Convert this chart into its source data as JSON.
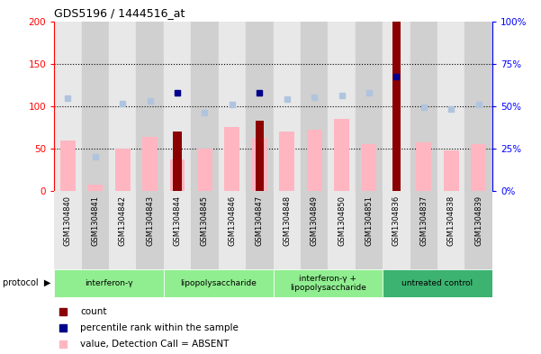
{
  "title": "GDS5196 / 1444516_at",
  "samples": [
    "GSM1304840",
    "GSM1304841",
    "GSM1304842",
    "GSM1304843",
    "GSM1304844",
    "GSM1304845",
    "GSM1304846",
    "GSM1304847",
    "GSM1304848",
    "GSM1304849",
    "GSM1304850",
    "GSM1304851",
    "GSM1304836",
    "GSM1304837",
    "GSM1304838",
    "GSM1304839"
  ],
  "groups": [
    {
      "name": "interferon-γ",
      "start": 0,
      "end": 4,
      "color": "#90EE90"
    },
    {
      "name": "lipopolysaccharide",
      "start": 4,
      "end": 8,
      "color": "#90EE90"
    },
    {
      "name": "interferon-γ +\nlipopolysaccharide",
      "start": 8,
      "end": 12,
      "color": "#90EE90"
    },
    {
      "name": "untreated control",
      "start": 12,
      "end": 16,
      "color": "#3CB371"
    }
  ],
  "count_values": [
    0,
    0,
    0,
    0,
    70,
    0,
    0,
    83,
    0,
    0,
    0,
    0,
    200,
    0,
    0,
    0
  ],
  "rank_values": [
    109,
    40,
    103,
    106,
    116,
    93,
    102,
    116,
    108,
    110,
    113,
    116,
    135,
    99,
    97,
    102
  ],
  "value_absent": [
    60,
    8,
    50,
    64,
    37,
    50,
    76,
    63,
    70,
    72,
    85,
    55,
    57,
    48,
    55
  ],
  "value_absent_indices": [
    0,
    1,
    2,
    3,
    4,
    5,
    6,
    7,
    8,
    9,
    10,
    11,
    13,
    14,
    15
  ],
  "rank_absent": [
    109,
    40,
    103,
    106,
    116,
    93,
    102,
    116,
    108,
    110,
    113,
    116,
    99,
    97,
    102
  ],
  "rank_absent_indices": [
    0,
    1,
    2,
    3,
    4,
    5,
    6,
    7,
    8,
    9,
    10,
    11,
    13,
    14,
    15
  ],
  "dark_blue_indices": [
    4,
    7,
    12
  ],
  "ylim_left": [
    0,
    200
  ],
  "ylim_right": [
    0,
    100
  ],
  "yticks_left": [
    0,
    50,
    100,
    150,
    200
  ],
  "yticks_right": [
    0,
    25,
    50,
    75,
    100
  ],
  "ytick_labels_right": [
    "0%",
    "25%",
    "50%",
    "75%",
    "100%"
  ],
  "grid_lines": [
    50,
    100,
    150
  ],
  "bar_color_dark_red": "#8B0000",
  "bar_color_pink": "#FFB6C1",
  "dot_color_dark_blue": "#00008B",
  "dot_color_light_blue": "#B0C4DE",
  "bg_gray_light": "#E8E8E8",
  "bg_gray_dark": "#D0D0D0",
  "legend_items": [
    {
      "label": "count",
      "color": "#8B0000",
      "marker": "s"
    },
    {
      "label": "percentile rank within the sample",
      "color": "#00008B",
      "marker": "s"
    },
    {
      "label": "value, Detection Call = ABSENT",
      "color": "#FFB6C1",
      "marker": "s"
    },
    {
      "label": "rank, Detection Call = ABSENT",
      "color": "#B0C4DE",
      "marker": "s"
    }
  ]
}
